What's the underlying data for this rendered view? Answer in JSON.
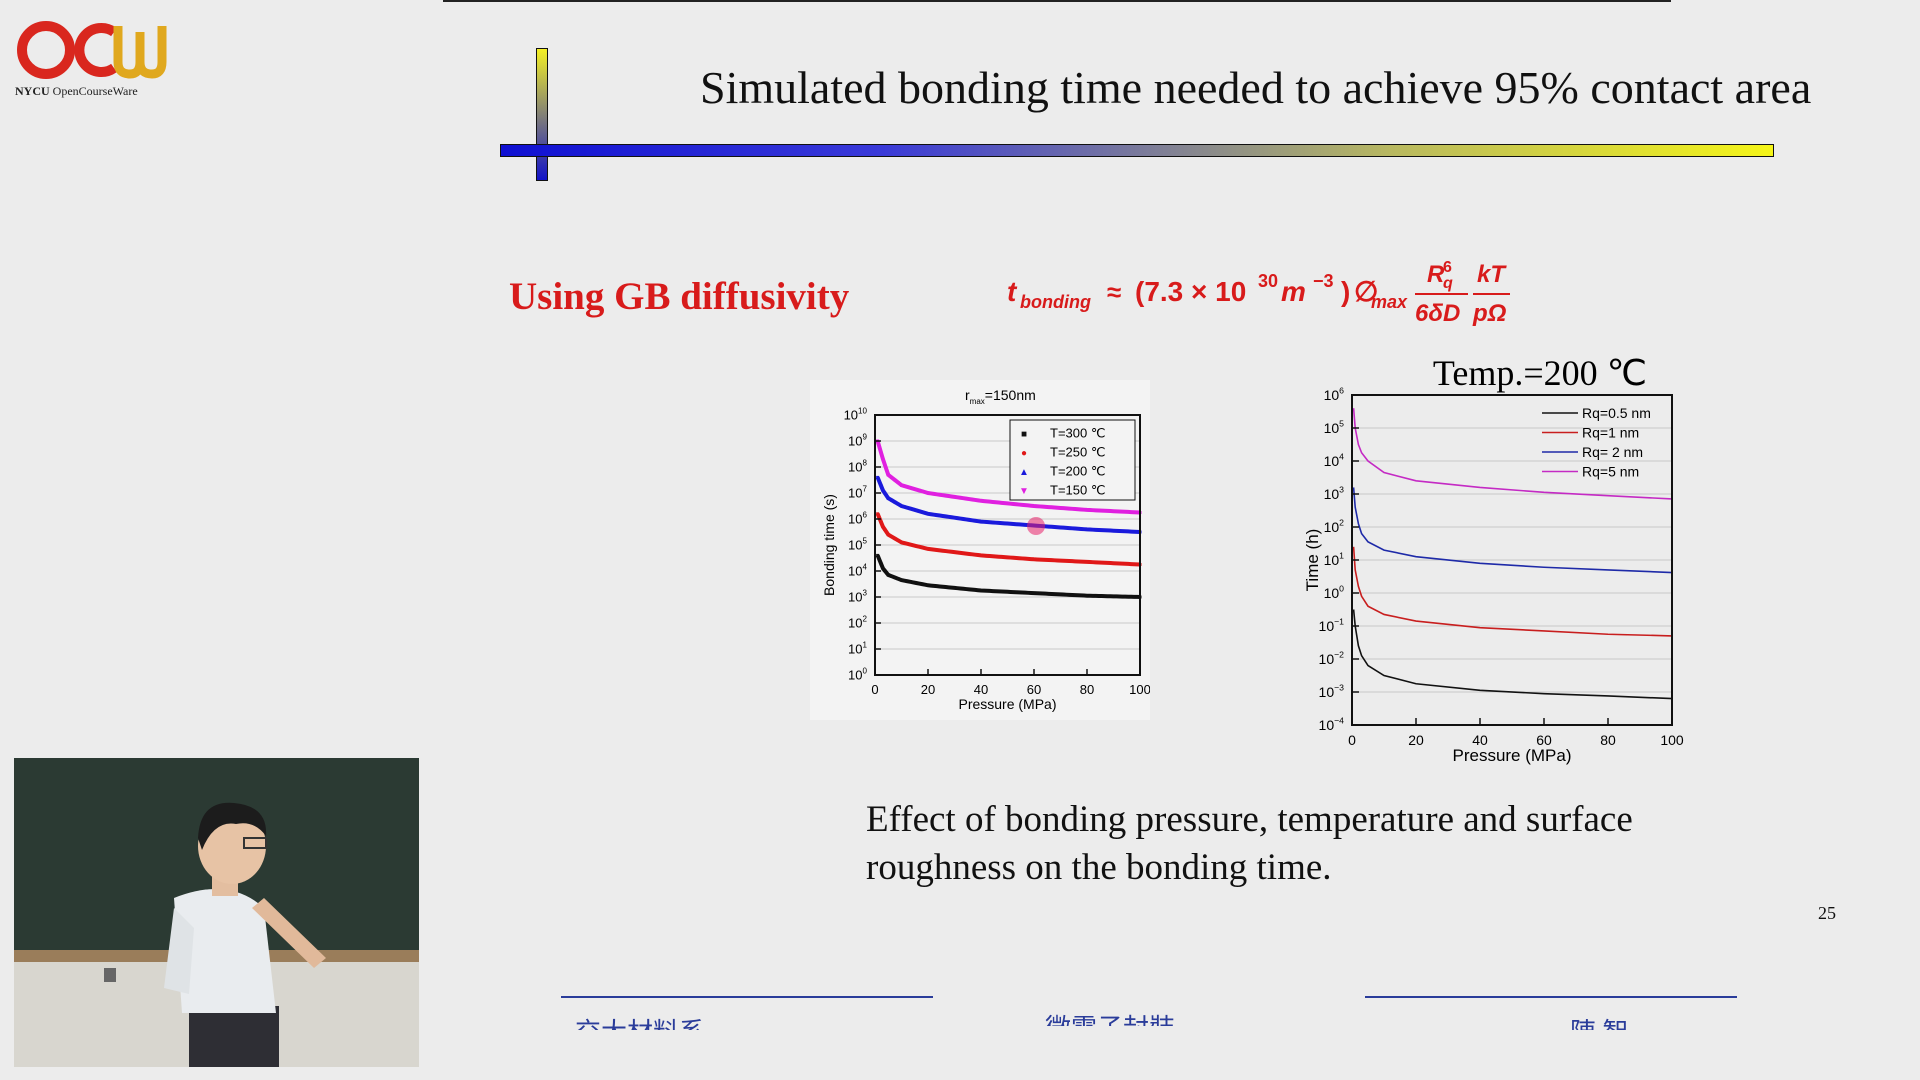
{
  "branding": {
    "logo_brand": "NYCU",
    "logo_tail": "OpenCourseWare"
  },
  "slide": {
    "title": "Simulated bonding time needed to achieve 95% contact area",
    "gb_label": "Using GB diffusivity",
    "formula": {
      "lhs": "t",
      "lhs_sub": "bonding",
      "approx": "≈",
      "coef": "(7.3 × 10",
      "coef_exp": "30",
      "unit": " m",
      "unit_exp": "−3",
      "coef_close": ")",
      "phi": "∅",
      "phi_sub": "max",
      "frac1_num": "R",
      "frac1_num_sup": "6",
      "frac1_num_sub": "q",
      "frac1_den": "6δD",
      "frac2_num": "kT",
      "frac2_den": "pΩ"
    },
    "caption_line1": "Effect of bonding pressure, temperature and  surface",
    "caption_line2": "roughness on the bonding time.",
    "page_number": "25",
    "footer_left": "交大材料系",
    "footer_center": "微電子封裝",
    "footer_right": "陳 智"
  },
  "colors": {
    "logo_red": "#d9271e",
    "logo_gold": "#e0a81e",
    "title_bar_blue": "#1010d0",
    "title_bar_yellow": "#f2f21a",
    "label_red": "#d81b1b",
    "footer_blue": "#2a3c9a"
  },
  "chart_data": [
    {
      "type": "scatter",
      "title": "r_max=150nm",
      "title_main": "r",
      "title_sub": "max",
      "title_tail": "=150nm",
      "xlabel": "Pressure (MPa)",
      "ylabel": "Bonding time (s)",
      "xlim": [
        0,
        100
      ],
      "ylim_exp": [
        0,
        10
      ],
      "yscale": "log",
      "x_ticks": [
        0,
        20,
        40,
        60,
        80,
        100
      ],
      "y_tick_exps": [
        0,
        1,
        2,
        3,
        4,
        5,
        6,
        7,
        8,
        9,
        10
      ],
      "y_tick_base": "10",
      "legend_position": "top-right",
      "series": [
        {
          "name": "T=300 ℃",
          "marker": "■",
          "color": "#111111",
          "x": [
            1,
            3,
            5,
            10,
            20,
            40,
            60,
            80,
            100
          ],
          "y_exp": [
            4.6,
            4.1,
            3.85,
            3.65,
            3.45,
            3.25,
            3.15,
            3.05,
            3.0
          ]
        },
        {
          "name": "T=250 ℃",
          "marker": "●",
          "color": "#e01818",
          "x": [
            1,
            3,
            5,
            10,
            20,
            40,
            60,
            80,
            100
          ],
          "y_exp": [
            6.2,
            5.7,
            5.4,
            5.1,
            4.85,
            4.6,
            4.45,
            4.35,
            4.25
          ]
        },
        {
          "name": "T=200 ℃",
          "marker": "▲",
          "color": "#1a1adc",
          "x": [
            1,
            3,
            5,
            10,
            20,
            40,
            60,
            80,
            100
          ],
          "y_exp": [
            7.6,
            7.1,
            6.8,
            6.5,
            6.2,
            5.9,
            5.75,
            5.6,
            5.5
          ]
        },
        {
          "name": "T=150 ℃",
          "marker": "▼",
          "color": "#e020e0",
          "x": [
            1,
            3,
            5,
            10,
            20,
            40,
            60,
            80,
            100
          ],
          "y_exp": [
            9.0,
            8.3,
            7.7,
            7.3,
            7.0,
            6.7,
            6.5,
            6.35,
            6.25
          ]
        }
      ]
    },
    {
      "type": "line",
      "title": "Temp.=200 ℃",
      "xlabel": "Pressure (MPa)",
      "ylabel": "Time (h)",
      "xlim": [
        0,
        100
      ],
      "ylim_exp": [
        -4,
        6
      ],
      "yscale": "log",
      "x_ticks": [
        0,
        20,
        40,
        60,
        80,
        100
      ],
      "y_tick_exps": [
        -4,
        -3,
        -2,
        -1,
        0,
        1,
        2,
        3,
        4,
        5,
        6
      ],
      "y_tick_base": "10",
      "legend_position": "top-right",
      "series": [
        {
          "name": "Rq=0.5 nm",
          "color": "#111111",
          "x": [
            0.5,
            1,
            2,
            3,
            5,
            10,
            20,
            40,
            60,
            80,
            100
          ],
          "y_exp": [
            -0.5,
            -1.0,
            -1.6,
            -1.9,
            -2.2,
            -2.5,
            -2.75,
            -2.95,
            -3.05,
            -3.12,
            -3.2
          ]
        },
        {
          "name": "Rq=1 nm",
          "color": "#c81e1e",
          "x": [
            0.5,
            1,
            2,
            3,
            5,
            10,
            20,
            40,
            60,
            80,
            100
          ],
          "y_exp": [
            1.4,
            0.7,
            0.2,
            -0.1,
            -0.4,
            -0.65,
            -0.85,
            -1.05,
            -1.15,
            -1.25,
            -1.3
          ]
        },
        {
          "name": "Rq= 2 nm",
          "color": "#1e2aa8",
          "x": [
            0.5,
            1,
            2,
            3,
            5,
            10,
            20,
            40,
            60,
            80,
            100
          ],
          "y_exp": [
            3.2,
            2.6,
            2.1,
            1.8,
            1.55,
            1.3,
            1.1,
            0.9,
            0.78,
            0.7,
            0.62
          ]
        },
        {
          "name": "Rq=5 nm",
          "color": "#c42ac4",
          "x": [
            0.5,
            1,
            2,
            3,
            5,
            10,
            20,
            40,
            60,
            80,
            100
          ],
          "y_exp": [
            5.6,
            5.0,
            4.5,
            4.25,
            4.0,
            3.65,
            3.4,
            3.2,
            3.05,
            2.95,
            2.85
          ]
        }
      ]
    }
  ]
}
